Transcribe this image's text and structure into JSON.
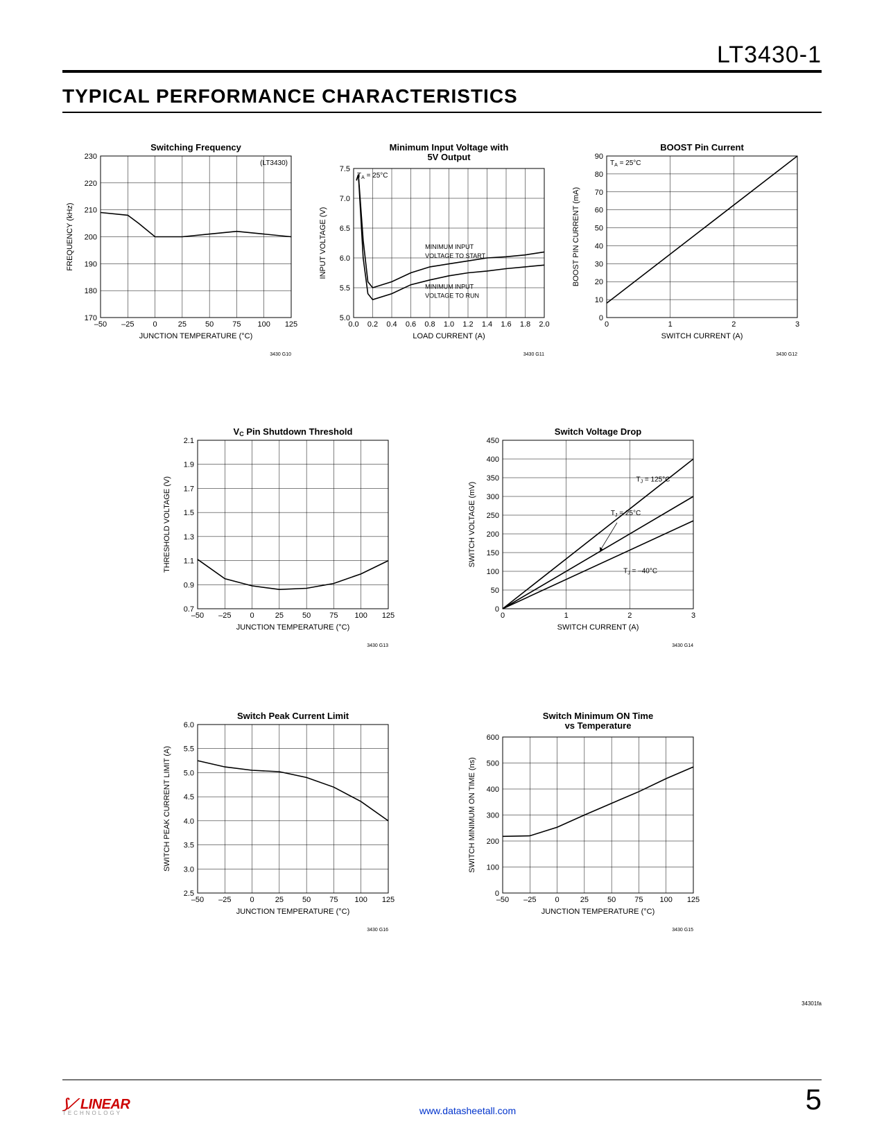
{
  "header": {
    "part_number": "LT3430-1"
  },
  "section_title": "TYPICAL PERFORMANCE CHARACTERISTICS",
  "charts": {
    "c1": {
      "title": "Switching Frequency",
      "xlabel": "JUNCTION TEMPERATURE (°C)",
      "ylabel": "FREQUENCY (kHz)",
      "xmin": -50,
      "xmax": 125,
      "xtick_step": 25,
      "ymin": 170,
      "ymax": 230,
      "ytick_step": 10,
      "series": [
        {
          "label": "(LT3430)",
          "x": [
            -50,
            -25,
            -15,
            0,
            25,
            50,
            75,
            100,
            125
          ],
          "y": [
            209,
            208,
            205,
            200,
            200,
            201,
            202,
            201,
            200
          ]
        }
      ],
      "caption": "3430 G10",
      "colors": {
        "line": "#000",
        "grid": "#000",
        "bg": "#fff"
      }
    },
    "c2": {
      "title": "Minimum Input Voltage with 5V Output",
      "xlabel": "LOAD CURRENT (A)",
      "ylabel": "INPUT VOLTAGE (V)",
      "xmin": 0,
      "xmax": 2.0,
      "xtick_step": 0.2,
      "ymin": 5.0,
      "ymax": 7.5,
      "ytick_step": 0.5,
      "annotation_top": "T_A = 25°C",
      "series": [
        {
          "label": "MINIMUM INPUT VOLTAGE TO START",
          "x": [
            0.03,
            0.05,
            0.1,
            0.15,
            0.2,
            0.4,
            0.6,
            0.8,
            1.0,
            1.2,
            1.4,
            1.6,
            1.8,
            2.0
          ],
          "y": [
            7.3,
            7.4,
            6.3,
            5.6,
            5.5,
            5.6,
            5.75,
            5.85,
            5.9,
            5.95,
            6.0,
            6.02,
            6.05,
            6.1
          ]
        },
        {
          "label": "MINIMUM INPUT VOLTAGE TO RUN",
          "x": [
            0.03,
            0.05,
            0.1,
            0.15,
            0.2,
            0.4,
            0.6,
            0.8,
            1.0,
            1.2,
            1.4,
            1.6,
            1.8,
            2.0
          ],
          "y": [
            7.3,
            7.4,
            6.0,
            5.4,
            5.3,
            5.4,
            5.55,
            5.63,
            5.7,
            5.75,
            5.78,
            5.82,
            5.85,
            5.88
          ]
        }
      ],
      "caption": "3430 G11",
      "colors": {
        "line": "#000",
        "grid": "#000",
        "bg": "#fff"
      }
    },
    "c3": {
      "title": "BOOST Pin Current",
      "xlabel": "SWITCH CURRENT (A)",
      "ylabel": "BOOST PIN CURRENT (mA)",
      "xmin": 0,
      "xmax": 3,
      "xtick_step": 1,
      "ymin": 0,
      "ymax": 90,
      "ytick_step": 10,
      "annotation_top": "T_A = 25°C",
      "series": [
        {
          "x": [
            0,
            3
          ],
          "y": [
            8,
            90
          ]
        }
      ],
      "caption": "3430 G12",
      "colors": {
        "line": "#000",
        "grid": "#000",
        "bg": "#fff"
      }
    },
    "c4": {
      "title": "V_C Pin Shutdown Threshold",
      "xlabel": "JUNCTION TEMPERATURE (°C)",
      "ylabel": "THRESHOLD VOLTAGE (V)",
      "xmin": -50,
      "xmax": 125,
      "xtick_step": 25,
      "ymin": 0.7,
      "ymax": 2.1,
      "ytick_step": 0.2,
      "series": [
        {
          "x": [
            -50,
            -25,
            0,
            25,
            50,
            75,
            100,
            125
          ],
          "y": [
            1.11,
            0.95,
            0.89,
            0.86,
            0.87,
            0.91,
            0.99,
            1.1
          ]
        }
      ],
      "caption": "3430 G13",
      "colors": {
        "line": "#000",
        "grid": "#000",
        "bg": "#fff"
      }
    },
    "c5": {
      "title": "Switch Voltage Drop",
      "xlabel": "SWITCH CURRENT (A)",
      "ylabel": "SWITCH VOLTAGE (mV)",
      "xmin": 0,
      "xmax": 3,
      "xtick_step": 1,
      "ymin": 0,
      "ymax": 450,
      "ytick_step": 50,
      "series": [
        {
          "label": "T_J = 125°C",
          "x": [
            0,
            3
          ],
          "y": [
            0,
            400
          ]
        },
        {
          "label": "T_J = 25°C",
          "x": [
            0,
            3
          ],
          "y": [
            0,
            300
          ]
        },
        {
          "label": "T_J = –40°C",
          "x": [
            0,
            3
          ],
          "y": [
            0,
            235
          ]
        }
      ],
      "caption": "3430 G14",
      "colors": {
        "line": "#000",
        "grid": "#000",
        "bg": "#fff"
      }
    },
    "c6": {
      "title": "Switch Peak Current Limit",
      "xlabel": "JUNCTION TEMPERATURE (°C)",
      "ylabel": "SWITCH PEAK CURRENT LIMIT (A)",
      "xmin": -50,
      "xmax": 125,
      "xtick_step": 25,
      "ymin": 2.5,
      "ymax": 6.0,
      "ytick_step": 0.5,
      "series": [
        {
          "x": [
            -50,
            -25,
            0,
            25,
            50,
            75,
            100,
            125
          ],
          "y": [
            5.25,
            5.12,
            5.05,
            5.02,
            4.9,
            4.7,
            4.4,
            4.0
          ]
        }
      ],
      "caption": "3430 G16",
      "colors": {
        "line": "#000",
        "grid": "#000",
        "bg": "#fff"
      }
    },
    "c7": {
      "title": "Switch Minimum ON Time vs Temperature",
      "xlabel": "JUNCTION TEMPERATURE (°C)",
      "ylabel": "SWITCH MINIMUM ON TIME (ns)",
      "xmin": -50,
      "xmax": 125,
      "xtick_step": 25,
      "ymin": 0,
      "ymax": 600,
      "ytick_step": 100,
      "series": [
        {
          "x": [
            -50,
            -25,
            0,
            25,
            50,
            75,
            100,
            125
          ],
          "y": [
            218,
            220,
            253,
            300,
            345,
            390,
            440,
            485
          ]
        }
      ],
      "caption": "3430 G15",
      "colors": {
        "line": "#000",
        "grid": "#000",
        "bg": "#fff"
      }
    }
  },
  "footer": {
    "logo_main": "LINEAR",
    "logo_sub": "TECHNOLOGY",
    "url": "www.datasheetall.com",
    "page_no": "5",
    "rev": "34301fa"
  }
}
